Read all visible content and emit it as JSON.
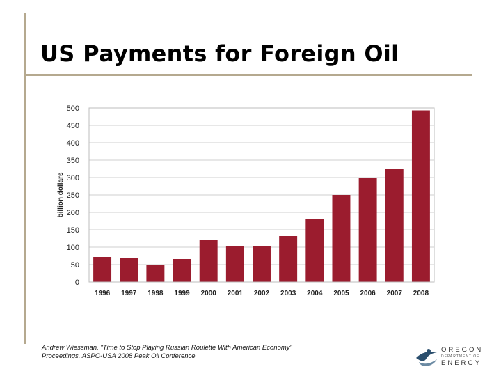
{
  "slide": {
    "title": "US Payments for Foreign Oil",
    "source_line1": "Andrew Wiessman, \"Time to Stop Playing Russian Roulette With American Economy\"",
    "source_line2": "Proceedings, ASPO-USA 2008 Peak Oil Conference",
    "logo": {
      "line1": "OREGON",
      "line2": "DEPARTMENT OF",
      "line3": "ENERGY"
    },
    "accent_color": "#b5a98f"
  },
  "chart_data": {
    "type": "bar",
    "title": "",
    "xlabel": "",
    "ylabel": "billion dollars",
    "categories": [
      "1996",
      "1997",
      "1998",
      "1999",
      "2000",
      "2001",
      "2002",
      "2003",
      "2004",
      "2005",
      "2006",
      "2007",
      "2008"
    ],
    "values": [
      72,
      70,
      50,
      66,
      120,
      104,
      104,
      132,
      180,
      250,
      300,
      326,
      493
    ],
    "ylim": [
      0,
      500
    ],
    "yticks": [
      0,
      50,
      100,
      150,
      200,
      250,
      300,
      350,
      400,
      450,
      500
    ],
    "grid": true,
    "bar_color": "#9b1c2e",
    "grid_color": "#cfcfcf"
  }
}
